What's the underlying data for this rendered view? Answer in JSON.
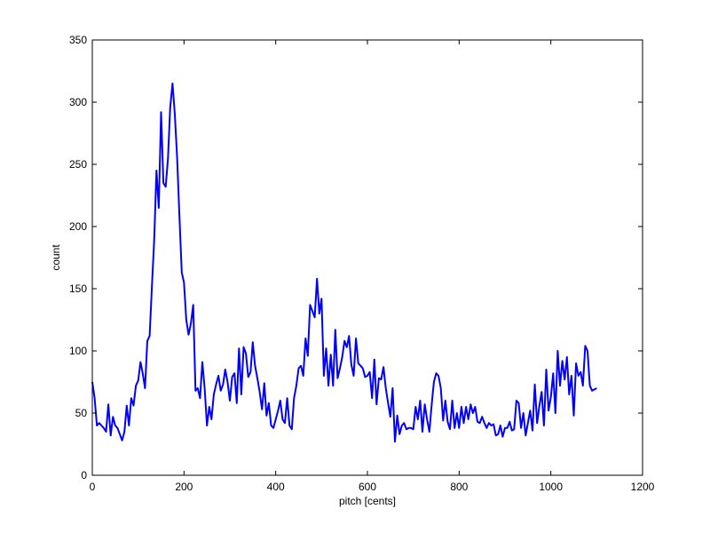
{
  "chart_data": {
    "type": "line",
    "xlabel": "pitch [cents]",
    "ylabel": "count",
    "xlim": [
      0,
      1200
    ],
    "ylim": [
      0,
      350
    ],
    "x_ticks": [
      0,
      200,
      400,
      600,
      800,
      1000,
      1200
    ],
    "y_ticks": [
      0,
      50,
      100,
      150,
      200,
      250,
      300,
      350
    ],
    "grid": false,
    "line_color": "#0000ff",
    "series": [
      {
        "points": [
          [
            0,
            75
          ],
          [
            5,
            62
          ],
          [
            10,
            40
          ],
          [
            15,
            42
          ],
          [
            20,
            40
          ],
          [
            25,
            38
          ],
          [
            30,
            35
          ],
          [
            35,
            57
          ],
          [
            40,
            32
          ],
          [
            45,
            47
          ],
          [
            50,
            40
          ],
          [
            55,
            38
          ],
          [
            60,
            33
          ],
          [
            65,
            28
          ],
          [
            70,
            35
          ],
          [
            75,
            56
          ],
          [
            80,
            40
          ],
          [
            85,
            62
          ],
          [
            90,
            56
          ],
          [
            95,
            72
          ],
          [
            100,
            76
          ],
          [
            105,
            91
          ],
          [
            110,
            82
          ],
          [
            115,
            70
          ],
          [
            120,
            108
          ],
          [
            125,
            112
          ],
          [
            130,
            152
          ],
          [
            135,
            190
          ],
          [
            140,
            245
          ],
          [
            145,
            215
          ],
          [
            150,
            292
          ],
          [
            155,
            235
          ],
          [
            160,
            232
          ],
          [
            165,
            255
          ],
          [
            170,
            296
          ],
          [
            175,
            315
          ],
          [
            180,
            290
          ],
          [
            185,
            255
          ],
          [
            190,
            208
          ],
          [
            195,
            163
          ],
          [
            200,
            155
          ],
          [
            205,
            125
          ],
          [
            210,
            113
          ],
          [
            215,
            122
          ],
          [
            220,
            137
          ],
          [
            225,
            68
          ],
          [
            230,
            70
          ],
          [
            235,
            62
          ],
          [
            240,
            91
          ],
          [
            245,
            70
          ],
          [
            250,
            40
          ],
          [
            255,
            55
          ],
          [
            260,
            45
          ],
          [
            265,
            65
          ],
          [
            270,
            73
          ],
          [
            275,
            80
          ],
          [
            280,
            68
          ],
          [
            285,
            73
          ],
          [
            290,
            85
          ],
          [
            295,
            75
          ],
          [
            300,
            60
          ],
          [
            305,
            79
          ],
          [
            310,
            82
          ],
          [
            315,
            58
          ],
          [
            320,
            102
          ],
          [
            325,
            65
          ],
          [
            330,
            103
          ],
          [
            335,
            98
          ],
          [
            340,
            79
          ],
          [
            345,
            83
          ],
          [
            350,
            107
          ],
          [
            355,
            88
          ],
          [
            360,
            78
          ],
          [
            365,
            67
          ],
          [
            370,
            53
          ],
          [
            375,
            74
          ],
          [
            380,
            48
          ],
          [
            385,
            58
          ],
          [
            390,
            40
          ],
          [
            395,
            38
          ],
          [
            400,
            45
          ],
          [
            405,
            52
          ],
          [
            410,
            60
          ],
          [
            415,
            45
          ],
          [
            420,
            42
          ],
          [
            425,
            62
          ],
          [
            430,
            40
          ],
          [
            435,
            37
          ],
          [
            440,
            62
          ],
          [
            445,
            72
          ],
          [
            450,
            86
          ],
          [
            455,
            88
          ],
          [
            460,
            80
          ],
          [
            465,
            110
          ],
          [
            470,
            96
          ],
          [
            475,
            137
          ],
          [
            480,
            132
          ],
          [
            485,
            127
          ],
          [
            490,
            158
          ],
          [
            495,
            130
          ],
          [
            500,
            142
          ],
          [
            505,
            80
          ],
          [
            510,
            102
          ],
          [
            515,
            72
          ],
          [
            520,
            97
          ],
          [
            525,
            72
          ],
          [
            530,
            117
          ],
          [
            535,
            78
          ],
          [
            540,
            86
          ],
          [
            545,
            95
          ],
          [
            550,
            108
          ],
          [
            555,
            103
          ],
          [
            560,
            112
          ],
          [
            565,
            89
          ],
          [
            570,
            80
          ],
          [
            575,
            110
          ],
          [
            580,
            90
          ],
          [
            585,
            88
          ],
          [
            590,
            86
          ],
          [
            595,
            79
          ],
          [
            600,
            80
          ],
          [
            605,
            83
          ],
          [
            610,
            62
          ],
          [
            615,
            93
          ],
          [
            620,
            57
          ],
          [
            625,
            78
          ],
          [
            630,
            77
          ],
          [
            635,
            87
          ],
          [
            640,
            70
          ],
          [
            645,
            58
          ],
          [
            650,
            47
          ],
          [
            655,
            70
          ],
          [
            660,
            27
          ],
          [
            665,
            48
          ],
          [
            670,
            33
          ],
          [
            675,
            40
          ],
          [
            680,
            42
          ],
          [
            685,
            37
          ],
          [
            690,
            38
          ],
          [
            695,
            38
          ],
          [
            700,
            37
          ],
          [
            705,
            55
          ],
          [
            710,
            45
          ],
          [
            715,
            60
          ],
          [
            720,
            35
          ],
          [
            725,
            57
          ],
          [
            730,
            45
          ],
          [
            735,
            35
          ],
          [
            740,
            56
          ],
          [
            745,
            75
          ],
          [
            750,
            82
          ],
          [
            755,
            80
          ],
          [
            760,
            70
          ],
          [
            765,
            44
          ],
          [
            770,
            60
          ],
          [
            775,
            43
          ],
          [
            780,
            37
          ],
          [
            785,
            60
          ],
          [
            790,
            38
          ],
          [
            795,
            50
          ],
          [
            800,
            38
          ],
          [
            805,
            55
          ],
          [
            810,
            42
          ],
          [
            815,
            55
          ],
          [
            820,
            45
          ],
          [
            825,
            57
          ],
          [
            830,
            50
          ],
          [
            835,
            55
          ],
          [
            840,
            43
          ],
          [
            845,
            42
          ],
          [
            850,
            47
          ],
          [
            855,
            42
          ],
          [
            860,
            38
          ],
          [
            865,
            42
          ],
          [
            870,
            40
          ],
          [
            875,
            41
          ],
          [
            880,
            32
          ],
          [
            885,
            33
          ],
          [
            890,
            40
          ],
          [
            895,
            31
          ],
          [
            900,
            38
          ],
          [
            905,
            38
          ],
          [
            910,
            43
          ],
          [
            915,
            36
          ],
          [
            920,
            37
          ],
          [
            925,
            60
          ],
          [
            930,
            58
          ],
          [
            935,
            38
          ],
          [
            940,
            50
          ],
          [
            945,
            32
          ],
          [
            950,
            42
          ],
          [
            955,
            52
          ],
          [
            960,
            36
          ],
          [
            965,
            73
          ],
          [
            970,
            42
          ],
          [
            975,
            56
          ],
          [
            980,
            67
          ],
          [
            985,
            40
          ],
          [
            990,
            85
          ],
          [
            995,
            52
          ],
          [
            1000,
            63
          ],
          [
            1005,
            82
          ],
          [
            1010,
            50
          ],
          [
            1015,
            100
          ],
          [
            1020,
            72
          ],
          [
            1025,
            92
          ],
          [
            1030,
            77
          ],
          [
            1035,
            95
          ],
          [
            1040,
            65
          ],
          [
            1045,
            80
          ],
          [
            1050,
            48
          ],
          [
            1055,
            90
          ],
          [
            1060,
            80
          ],
          [
            1065,
            83
          ],
          [
            1070,
            72
          ],
          [
            1075,
            104
          ],
          [
            1080,
            100
          ],
          [
            1085,
            72
          ],
          [
            1090,
            68
          ],
          [
            1100,
            70
          ]
        ]
      }
    ]
  }
}
